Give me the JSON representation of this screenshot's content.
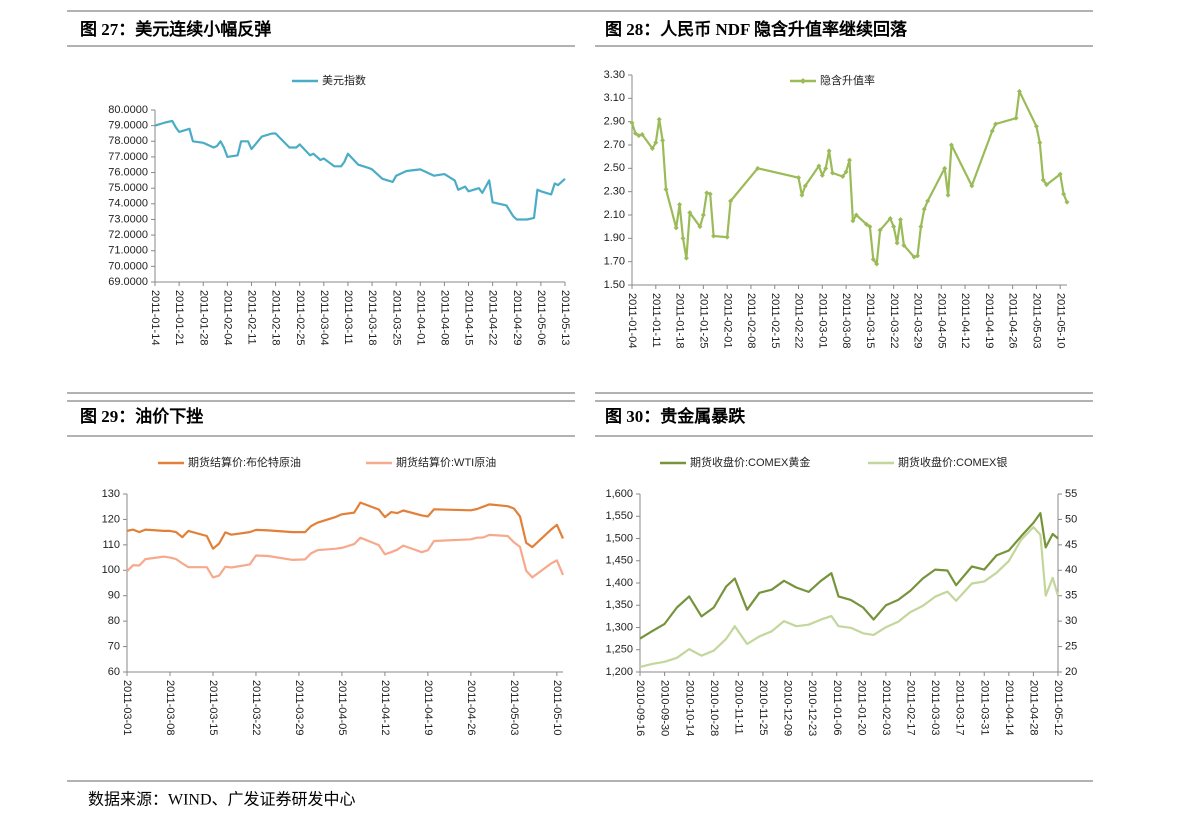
{
  "chart_data": [
    {
      "type": "line",
      "title": "图 27：美元连续小幅反弹",
      "legend": "top",
      "x": [
        "2011-01-14",
        "2011-01-17",
        "2011-01-19",
        "2011-01-20",
        "2011-01-21",
        "2011-01-24",
        "2011-01-25",
        "2011-01-28",
        "2011-01-31",
        "2011-02-01",
        "2011-02-02",
        "2011-02-03",
        "2011-02-04",
        "2011-02-07",
        "2011-02-08",
        "2011-02-10",
        "2011-02-11",
        "2011-02-14",
        "2011-02-17",
        "2011-02-18",
        "2011-02-22",
        "2011-02-24",
        "2011-02-25",
        "2011-02-28",
        "2011-03-01",
        "2011-03-03",
        "2011-03-04",
        "2011-03-07",
        "2011-03-09",
        "2011-03-10",
        "2011-03-11",
        "2011-03-14",
        "2011-03-17",
        "2011-03-18",
        "2011-03-21",
        "2011-03-24",
        "2011-03-25",
        "2011-03-28",
        "2011-04-01",
        "2011-04-04",
        "2011-04-05",
        "2011-04-08",
        "2011-04-11",
        "2011-04-12",
        "2011-04-14",
        "2011-04-15",
        "2011-04-18",
        "2011-04-19",
        "2011-04-20",
        "2011-04-21",
        "2011-04-22",
        "2011-04-26",
        "2011-04-28",
        "2011-04-29",
        "2011-05-02",
        "2011-05-04",
        "2011-05-05",
        "2011-05-06",
        "2011-05-09",
        "2011-05-10",
        "2011-05-11",
        "2011-05-13"
      ],
      "series": [
        {
          "name": "美元指数",
          "color": "#4bacc6",
          "values": [
            79.0,
            79.2,
            79.3,
            78.9,
            78.6,
            78.8,
            78.0,
            77.9,
            77.6,
            77.7,
            78.0,
            77.6,
            77.0,
            77.1,
            78.0,
            78.0,
            77.5,
            78.3,
            78.5,
            78.5,
            77.6,
            77.6,
            77.8,
            77.1,
            77.2,
            76.8,
            76.9,
            76.4,
            76.4,
            76.7,
            77.2,
            76.5,
            76.3,
            76.2,
            75.6,
            75.4,
            75.8,
            76.1,
            76.2,
            75.9,
            75.8,
            75.9,
            75.5,
            74.9,
            75.1,
            74.8,
            75.0,
            74.7,
            75.1,
            75.5,
            74.1,
            73.9,
            73.2,
            73.0,
            73.0,
            73.1,
            74.9,
            74.8,
            74.6,
            75.3,
            75.2,
            75.6
          ]
        }
      ],
      "xlim": [
        "2011-01-14",
        "2011-05-13"
      ],
      "xticks": [
        "2011-01-14",
        "2011-01-21",
        "2011-01-28",
        "2011-02-04",
        "2011-02-11",
        "2011-02-18",
        "2011-02-25",
        "2011-03-04",
        "2011-03-11",
        "2011-03-18",
        "2011-03-25",
        "2011-04-01",
        "2011-04-08",
        "2011-04-15",
        "2011-04-22",
        "2011-04-29",
        "2011-05-06",
        "2011-05-13"
      ],
      "ylim": [
        69,
        80
      ],
      "yticks": [
        {
          "value": 69,
          "label": "69.0000"
        },
        {
          "value": 70,
          "label": "70.0000"
        },
        {
          "value": 71,
          "label": "71.0000"
        },
        {
          "value": 72,
          "label": "72.0000"
        },
        {
          "value": 73,
          "label": "73.0000"
        },
        {
          "value": 74,
          "label": "74.0000"
        },
        {
          "value": 75,
          "label": "75.0000"
        },
        {
          "value": 76,
          "label": "76.0000"
        },
        {
          "value": 77,
          "label": "77.0000"
        },
        {
          "value": 78,
          "label": "78.0000"
        },
        {
          "value": 79,
          "label": "79.0000"
        },
        {
          "value": 80,
          "label": "80.0000"
        }
      ]
    },
    {
      "type": "line",
      "title": "图 28：人民币 NDF 隐含升值率继续回落",
      "legend": "top",
      "marker": "diamond",
      "x": [
        "2011-01-04",
        "2011-01-05",
        "2011-01-06",
        "2011-01-07",
        "2011-01-10",
        "2011-01-11",
        "2011-01-12",
        "2011-01-13",
        "2011-01-14",
        "2011-01-17",
        "2011-01-18",
        "2011-01-19",
        "2011-01-20",
        "2011-01-21",
        "2011-01-24",
        "2011-01-25",
        "2011-01-26",
        "2011-01-27",
        "2011-01-28",
        "2011-02-01",
        "2011-02-02",
        "2011-02-10",
        "2011-02-22",
        "2011-02-23",
        "2011-02-24",
        "2011-02-28",
        "2011-03-01",
        "2011-03-02",
        "2011-03-03",
        "2011-03-04",
        "2011-03-07",
        "2011-03-08",
        "2011-03-09",
        "2011-03-10",
        "2011-03-11",
        "2011-03-14",
        "2011-03-15",
        "2011-03-16",
        "2011-03-17",
        "2011-03-18",
        "2011-03-21",
        "2011-03-22",
        "2011-03-23",
        "2011-03-24",
        "2011-03-25",
        "2011-03-28",
        "2011-03-29",
        "2011-03-30",
        "2011-03-31",
        "2011-04-01",
        "2011-04-06",
        "2011-04-07",
        "2011-04-08",
        "2011-04-14",
        "2011-04-20",
        "2011-04-21",
        "2011-04-27",
        "2011-04-28",
        "2011-05-03",
        "2011-05-04",
        "2011-05-05",
        "2011-05-06",
        "2011-05-10",
        "2011-05-11",
        "2011-05-12"
      ],
      "series": [
        {
          "name": "隐含升值率",
          "color": "#9bbb59",
          "values": [
            2.89,
            2.8,
            2.78,
            2.79,
            2.67,
            2.72,
            2.92,
            2.74,
            2.32,
            1.99,
            2.19,
            1.9,
            1.73,
            2.12,
            2.0,
            2.1,
            2.29,
            2.28,
            1.92,
            1.91,
            2.22,
            2.5,
            2.42,
            2.27,
            2.35,
            2.52,
            2.44,
            2.5,
            2.65,
            2.46,
            2.43,
            2.47,
            2.57,
            2.05,
            2.1,
            2.02,
            2.0,
            1.72,
            1.68,
            1.97,
            2.07,
            2.0,
            1.86,
            2.06,
            1.84,
            1.74,
            1.75,
            2.0,
            2.15,
            2.22,
            2.5,
            2.27,
            2.7,
            2.35,
            2.82,
            2.88,
            2.93,
            3.16,
            2.86,
            2.72,
            2.4,
            2.36,
            2.45,
            2.28,
            2.21
          ]
        }
      ],
      "xlim": [
        "2011-01-04",
        "2011-05-12"
      ],
      "xticks": [
        "2011-01-04",
        "2011-01-11",
        "2011-01-18",
        "2011-01-25",
        "2011-02-01",
        "2011-02-08",
        "2011-02-15",
        "2011-02-22",
        "2011-03-01",
        "2011-03-08",
        "2011-03-15",
        "2011-03-22",
        "2011-03-29",
        "2011-04-05",
        "2011-04-12",
        "2011-04-19",
        "2011-04-26",
        "2011-05-03",
        "2011-05-10"
      ],
      "ylim": [
        1.5,
        3.3
      ],
      "yticks": [
        {
          "value": 1.5,
          "label": "1.50"
        },
        {
          "value": 1.7,
          "label": "1.70"
        },
        {
          "value": 1.9,
          "label": "1.90"
        },
        {
          "value": 2.1,
          "label": "2.10"
        },
        {
          "value": 2.3,
          "label": "2.30"
        },
        {
          "value": 2.5,
          "label": "2.50"
        },
        {
          "value": 2.7,
          "label": "2.70"
        },
        {
          "value": 2.9,
          "label": "2.90"
        },
        {
          "value": 3.1,
          "label": "3.10"
        },
        {
          "value": 3.3,
          "label": "3.30"
        }
      ]
    },
    {
      "type": "line",
      "title": "图 29：油价下挫",
      "legend": "top",
      "x": [
        "2011-03-01",
        "2011-03-02",
        "2011-03-03",
        "2011-03-04",
        "2011-03-07",
        "2011-03-08",
        "2011-03-09",
        "2011-03-10",
        "2011-03-11",
        "2011-03-14",
        "2011-03-15",
        "2011-03-16",
        "2011-03-17",
        "2011-03-18",
        "2011-03-21",
        "2011-03-22",
        "2011-03-24",
        "2011-03-28",
        "2011-03-30",
        "2011-03-31",
        "2011-04-01",
        "2011-04-04",
        "2011-04-05",
        "2011-04-07",
        "2011-04-08",
        "2011-04-11",
        "2011-04-12",
        "2011-04-13",
        "2011-04-14",
        "2011-04-15",
        "2011-04-18",
        "2011-04-19",
        "2011-04-20",
        "2011-04-26",
        "2011-04-27",
        "2011-04-28",
        "2011-04-29",
        "2011-05-02",
        "2011-05-03",
        "2011-05-04",
        "2011-05-05",
        "2011-05-06",
        "2011-05-09",
        "2011-05-10",
        "2011-05-11"
      ],
      "series": [
        {
          "name": "期货结算价:布伦特原油",
          "color": "#e2803a",
          "values": [
            115.5,
            116,
            115,
            116,
            115.5,
            115.5,
            115,
            113,
            115.5,
            113.5,
            108.5,
            110.5,
            114.9,
            114,
            115,
            115.9,
            115.7,
            115,
            115,
            117.4,
            118.7,
            121,
            122,
            122.7,
            126.6,
            123.9,
            120.9,
            122.9,
            122.5,
            123.5,
            121.6,
            121.2,
            124,
            123.6,
            124.1,
            125,
            125.9,
            125.2,
            124.3,
            121.2,
            110.8,
            109.1,
            115.9,
            117.9,
            112.5
          ]
        },
        {
          "name": "期货结算价:WTI原油",
          "color": "#f7a98c",
          "values": [
            99.6,
            102,
            101.9,
            104.4,
            105.4,
            105,
            104.4,
            102.7,
            101.2,
            101.2,
            97.2,
            97.9,
            101.4,
            101.1,
            102.3,
            105.8,
            105.6,
            104.1,
            104.3,
            106.7,
            107.9,
            108.5,
            108.8,
            110.3,
            112.8,
            109.9,
            106.3,
            107.1,
            108.1,
            109.7,
            107.1,
            107.9,
            111.5,
            112.2,
            112.8,
            112.9,
            113.9,
            113.5,
            111,
            109.2,
            99.8,
            97.2,
            102.6,
            103.9,
            98.2
          ]
        }
      ],
      "xlim": [
        "2011-03-01",
        "2011-05-11"
      ],
      "xticks": [
        "2011-03-01",
        "2011-03-08",
        "2011-03-15",
        "2011-03-22",
        "2011-03-29",
        "2011-04-05",
        "2011-04-12",
        "2011-04-19",
        "2011-04-26",
        "2011-05-03",
        "2011-05-10"
      ],
      "ylim": [
        60,
        130
      ],
      "yticks": [
        60,
        70,
        80,
        90,
        100,
        110,
        120,
        130
      ]
    },
    {
      "type": "line",
      "title": "图 30：贵金属暴跌",
      "legend": "top",
      "x": [
        "2010-09-16",
        "2010-09-23",
        "2010-09-30",
        "2010-10-07",
        "2010-10-14",
        "2010-10-21",
        "2010-10-28",
        "2010-11-04",
        "2010-11-09",
        "2010-11-16",
        "2010-11-23",
        "2010-11-30",
        "2010-12-07",
        "2010-12-14",
        "2010-12-21",
        "2010-12-28",
        "2011-01-03",
        "2011-01-07",
        "2011-01-14",
        "2011-01-21",
        "2011-01-27",
        "2011-02-03",
        "2011-02-10",
        "2011-02-17",
        "2011-02-24",
        "2011-03-03",
        "2011-03-10",
        "2011-03-15",
        "2011-03-24",
        "2011-03-31",
        "2011-04-07",
        "2011-04-14",
        "2011-04-21",
        "2011-04-28",
        "2011-05-02",
        "2011-05-05",
        "2011-05-09",
        "2011-05-12"
      ],
      "series": [
        {
          "name": "期货收盘价:COMEX黄金",
          "color": "#77933c",
          "values": [
            1275,
            1292,
            1308,
            1345,
            1370,
            1325,
            1345,
            1392,
            1410,
            1340,
            1378,
            1385,
            1405,
            1390,
            1380,
            1405,
            1422,
            1370,
            1362,
            1345,
            1318,
            1350,
            1362,
            1383,
            1410,
            1430,
            1428,
            1395,
            1437,
            1430,
            1462,
            1473,
            1505,
            1535,
            1557,
            1480,
            1510,
            1500
          ]
        },
        {
          "name": "期货收盘价:COMEX银",
          "color": "#c3d69b",
          "axis": "y2",
          "values": [
            21.0,
            21.6,
            22.0,
            22.8,
            24.5,
            23.2,
            24.2,
            26.5,
            29.0,
            25.5,
            27.0,
            28.0,
            30.0,
            29.0,
            29.3,
            30.3,
            31.0,
            29.0,
            28.7,
            27.6,
            27.3,
            28.8,
            29.9,
            31.8,
            33.0,
            34.8,
            35.8,
            34.0,
            37.4,
            37.8,
            39.5,
            41.8,
            46.0,
            48.5,
            47.0,
            35.0,
            38.5,
            35.0
          ]
        }
      ],
      "xlim": [
        "2010-09-16",
        "2011-05-12"
      ],
      "xticks": [
        "2010-09-16",
        "2010-09-30",
        "2010-10-14",
        "2010-10-28",
        "2010-11-11",
        "2010-11-25",
        "2010-12-09",
        "2010-12-23",
        "2011-01-06",
        "2011-01-20",
        "2011-02-03",
        "2011-02-17",
        "2011-03-03",
        "2011-03-17",
        "2011-03-31",
        "2011-04-14",
        "2011-04-28",
        "2011-05-12"
      ],
      "ylim": [
        1200,
        1600
      ],
      "yticks": [
        {
          "value": 1200,
          "label": "1,200"
        },
        {
          "value": 1250,
          "label": "1,250"
        },
        {
          "value": 1300,
          "label": "1,300"
        },
        {
          "value": 1350,
          "label": "1,350"
        },
        {
          "value": 1400,
          "label": "1,400"
        },
        {
          "value": 1450,
          "label": "1,450"
        },
        {
          "value": 1500,
          "label": "1,500"
        },
        {
          "value": 1550,
          "label": "1,550"
        },
        {
          "value": 1600,
          "label": "1,600"
        }
      ],
      "y2lim": [
        20,
        55
      ],
      "y2ticks": [
        20,
        25,
        30,
        35,
        40,
        45,
        50,
        55
      ]
    }
  ],
  "source": "数据来源：WIND、广发证券研发中心"
}
